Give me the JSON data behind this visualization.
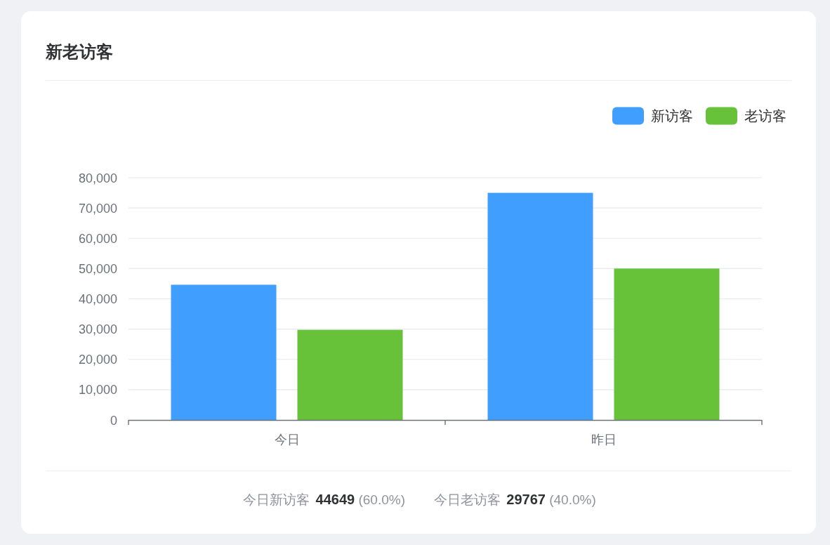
{
  "chart_data": {
    "type": "bar",
    "title": "新老访客",
    "categories": [
      "今日",
      "昨日"
    ],
    "series": [
      {
        "name": "新访客",
        "color": "#409eff",
        "values": [
          44649,
          75000
        ]
      },
      {
        "name": "老访客",
        "color": "#67c23a",
        "values": [
          29767,
          50000
        ]
      }
    ],
    "ylim": [
      0,
      80000
    ],
    "yticks": [
      0,
      {
        "value": 10000,
        "label": "10,000"
      },
      {
        "value": 20000,
        "label": "20,000"
      },
      {
        "value": 30000,
        "label": "30,000"
      },
      {
        "value": 40000,
        "label": "40,000"
      },
      {
        "value": 50000,
        "label": "50,000"
      },
      {
        "value": 60000,
        "label": "60,000"
      },
      {
        "value": 70000,
        "label": "70,000"
      },
      {
        "value": 80000,
        "label": "80,000"
      }
    ],
    "grid": "y",
    "legend": "top right",
    "annotations": [
      "今日新访客 **44649** (60.0%)",
      "今日老访客 **29767** (40.0%)"
    ]
  }
}
